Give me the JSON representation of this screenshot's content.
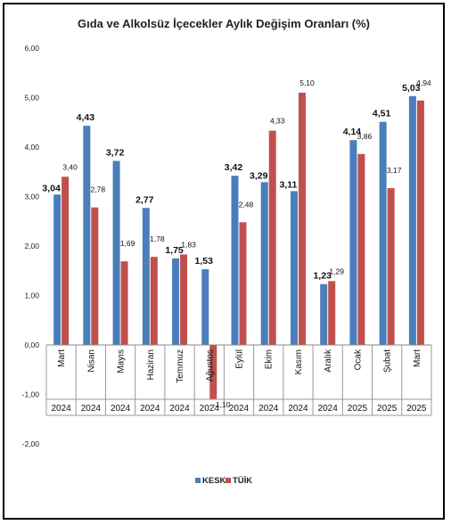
{
  "chart_data": {
    "type": "bar",
    "title": "Gıda ve Alkolsüz İçecekler Aylık Değişim Oranları (%)",
    "categories": [
      {
        "month": "Mart",
        "year": "2024"
      },
      {
        "month": "Nisan",
        "year": "2024"
      },
      {
        "month": "Mayıs",
        "year": "2024"
      },
      {
        "month": "Haziran",
        "year": "2024"
      },
      {
        "month": "Temmuz",
        "year": "2024"
      },
      {
        "month": "Ağustos",
        "year": "2024"
      },
      {
        "month": "Eylül",
        "year": "2024"
      },
      {
        "month": "Ekim",
        "year": "2024"
      },
      {
        "month": "Kasım",
        "year": "2024"
      },
      {
        "month": "Aralık",
        "year": "2024"
      },
      {
        "month": "Ocak",
        "year": "2025"
      },
      {
        "month": "Şubat",
        "year": "2025"
      },
      {
        "month": "Mart",
        "year": "2025"
      }
    ],
    "series": [
      {
        "name": "KESK",
        "color": "#4a7ebb",
        "values": [
          3.04,
          4.43,
          3.72,
          2.77,
          1.75,
          1.53,
          3.42,
          3.29,
          3.11,
          1.23,
          4.14,
          4.51,
          5.03
        ],
        "labels": [
          "3,04",
          "4,43",
          "3,72",
          "2,77",
          "1,75",
          "1,53",
          "3,42",
          "3,29",
          "3,11",
          "1,23",
          "4,14",
          "4,51",
          "5,03"
        ]
      },
      {
        "name": "TÜİK",
        "color": "#c0504d",
        "values": [
          3.4,
          2.78,
          1.69,
          1.78,
          1.83,
          -1.1,
          2.48,
          4.33,
          5.1,
          1.29,
          3.86,
          3.17,
          4.94
        ],
        "labels": [
          "3,40",
          "2,78",
          "1,69",
          "1,78",
          "1,83",
          "-1,10",
          "2,48",
          "4,33",
          "5,10",
          "1,29",
          "3,86",
          "3,17",
          "4,94"
        ]
      }
    ],
    "ylim": [
      -2,
      6
    ],
    "yticks": [
      "-2,00",
      "-1,00",
      "0,00",
      "1,00",
      "2,00",
      "3,00",
      "4,00",
      "5,00",
      "6,00"
    ],
    "grid": false,
    "legend": "bottom-center"
  }
}
